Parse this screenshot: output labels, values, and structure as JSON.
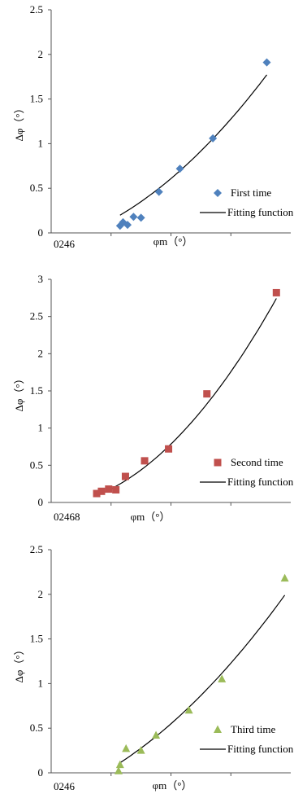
{
  "chart_data": [
    {
      "type": "scatter",
      "xlabel": "φm（°）",
      "ylabel": "Δφ（°）",
      "x_tick_text": "0246",
      "yticks": [
        "0",
        "0.5",
        "1",
        "1.5",
        "2",
        "2.5"
      ],
      "ylim": [
        0,
        2.5
      ],
      "xlim": [
        0,
        8
      ],
      "grid": false,
      "legend_position": "right",
      "marker": "diamond",
      "marker_color": "#4f81bd",
      "series": [
        {
          "name": "First time",
          "x": [
            2.3,
            2.4,
            2.55,
            2.75,
            3.0,
            3.6,
            4.3,
            5.4,
            7.2
          ],
          "y": [
            0.08,
            0.12,
            0.09,
            0.18,
            0.17,
            0.46,
            0.72,
            1.06,
            1.91
          ]
        }
      ],
      "fit": {
        "name": "Fitting function",
        "a": 0.0248,
        "b": 0.0853,
        "c": -0.129,
        "x_from": 2.3,
        "x_to": 7.2
      }
    },
    {
      "type": "scatter",
      "xlabel": "φm（°）",
      "ylabel": "Δφ（°）",
      "x_tick_text": "02468",
      "yticks": [
        "0",
        "0.5",
        "1",
        "1.5",
        "2",
        "2.5",
        "3"
      ],
      "ylim": [
        0,
        3
      ],
      "xlim": [
        0,
        10
      ],
      "grid": false,
      "legend_position": "right",
      "marker": "square",
      "marker_color": "#c0504d",
      "series": [
        {
          "name": "Second time",
          "x": [
            1.9,
            2.1,
            2.4,
            2.7,
            3.1,
            3.9,
            4.9,
            6.5,
            9.4
          ],
          "y": [
            0.12,
            0.15,
            0.18,
            0.17,
            0.35,
            0.56,
            0.72,
            1.46,
            2.82
          ]
        }
      ],
      "fit": {
        "name": "Fitting function",
        "a": 0.0295,
        "b": 0.0201,
        "c": -0.0529,
        "x_from": 1.9,
        "x_to": 9.4
      }
    },
    {
      "type": "scatter",
      "xlabel": "φm（°）",
      "ylabel": "Δφ（°）",
      "x_tick_text": "0246",
      "yticks": [
        "0",
        "0.5",
        "1",
        "1.5",
        "2",
        "2.5"
      ],
      "ylim": [
        0,
        2.5
      ],
      "xlim": [
        0,
        8
      ],
      "grid": false,
      "legend_position": "right",
      "marker": "triangle",
      "marker_color": "#9bbb59",
      "series": [
        {
          "name": "Third time",
          "x": [
            2.25,
            2.3,
            2.5,
            3.0,
            3.5,
            4.6,
            5.7,
            7.8
          ],
          "y": [
            0.02,
            0.09,
            0.27,
            0.25,
            0.42,
            0.7,
            1.05,
            2.18
          ]
        }
      ],
      "fit": {
        "name": "Fitting function",
        "a": 0.0222,
        "b": 0.1174,
        "c": -0.2752,
        "x_from": 2.25,
        "x_to": 7.8
      }
    }
  ]
}
